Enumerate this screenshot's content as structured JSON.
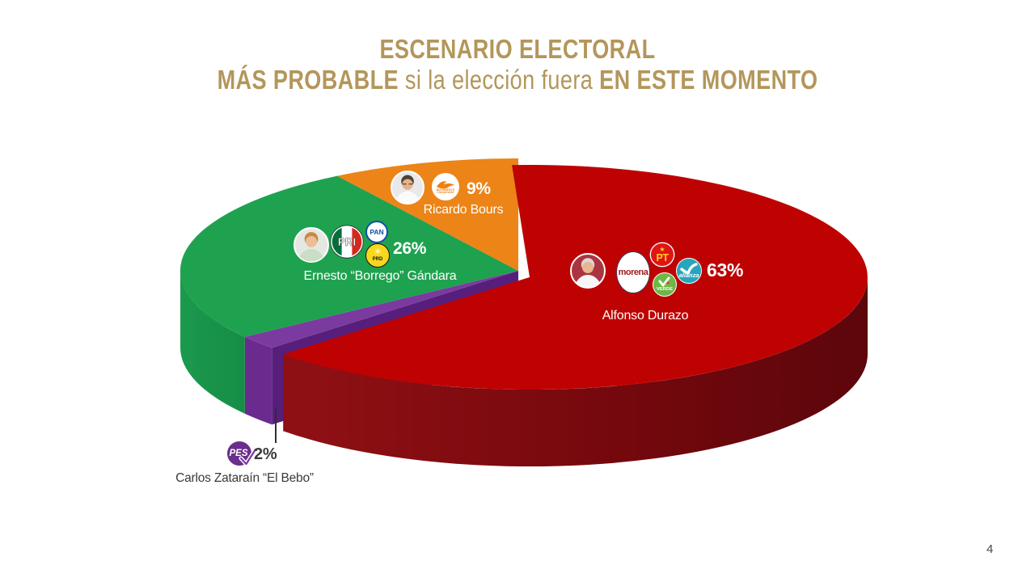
{
  "title": {
    "line1": "ESCENARIO ELECTORAL",
    "line2_bold1": "MÁS PROBABLE",
    "line2_regular": " si la elección fuera ",
    "line2_bold2": "EN ESTE MOMENTO",
    "color": "#B3965A"
  },
  "page_number": "4",
  "chart_data": {
    "type": "pie",
    "style": "3d-exploded",
    "start_angle_deg": 0,
    "direction": "clockwise",
    "title": "ESCENARIO ELECTORAL MÁS PROBABLE si la elección fuera EN ESTE MOMENTO",
    "slices": [
      {
        "candidate": "Alfonso Durazo",
        "value": 63,
        "pct_label": "63%",
        "parties": [
          "Morena",
          "PT",
          "Partido Verde",
          "Nueva Alianza"
        ],
        "color": "#BE0202",
        "wall_color": "#74080D",
        "cut_face_color": "#C00D10",
        "exploded": true,
        "label_color": "#FFFFFF"
      },
      {
        "candidate": "Carlos Zataraín “El Bebo”",
        "value": 2,
        "pct_label": "2%",
        "parties": [
          "PES"
        ],
        "color": "#7B3A9F",
        "wall_color": "#6A2B8F",
        "cut_face_color": "#571F7B",
        "exploded": false,
        "label_color": "#3A3A3A"
      },
      {
        "candidate": "Ernesto “Borrego” Gándara",
        "value": 26,
        "pct_label": "26%",
        "parties": [
          "PRI",
          "PAN",
          "PRD"
        ],
        "color": "#1FA24F",
        "wall_color": "#158A44",
        "cut_face_color": "#128041",
        "exploded": false,
        "label_color": "#FFFFFF"
      },
      {
        "candidate": "Ricardo Bours",
        "value": 9,
        "pct_label": "9%",
        "parties": [
          "Movimiento Ciudadano"
        ],
        "color": "#EC8418",
        "wall_color": "#C96C10",
        "cut_face_color": "#C96C10",
        "exploded": false,
        "label_color": "#FFFFFF"
      }
    ]
  },
  "logos": {
    "morena": "morena",
    "pt": "PT",
    "pt_star": "★",
    "verde": "VERDE",
    "alianza": "alianza",
    "pri": "PRI",
    "pan": "PAN",
    "prd": "PRD",
    "prd_sun": "☀",
    "mc_line1": "MOVIMIENTO",
    "mc_line2": "CIUDADANO",
    "pes": "PES"
  }
}
